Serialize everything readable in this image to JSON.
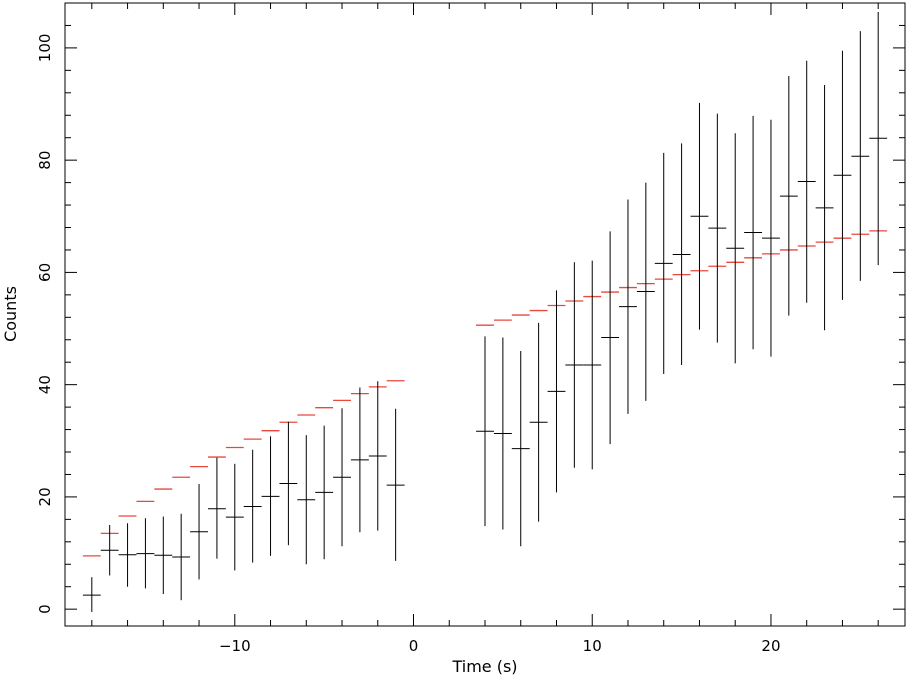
{
  "chart_data": {
    "type": "scatter",
    "xlabel": "Time (s)",
    "ylabel": "Counts",
    "xlim": [
      -19.5,
      27.5
    ],
    "ylim": [
      -3,
      108
    ],
    "x_ticks": [
      -10,
      0,
      10,
      20
    ],
    "y_ticks": [
      0,
      20,
      40,
      60,
      80,
      100
    ],
    "x_tick_labels": [
      "−10",
      "0",
      "10",
      "20"
    ],
    "y_tick_labels": [
      "0",
      "20",
      "40",
      "60",
      "80",
      "100"
    ],
    "grid": false,
    "bin_half_width": 0.5,
    "colors": {
      "data": "#000000",
      "model": "#e8483c"
    },
    "series": [
      {
        "style": "crosshair-errorbar",
        "x": [
          -18,
          -17,
          -16,
          -15,
          -14,
          -13,
          -12,
          -11,
          -10,
          -9,
          -8,
          -7,
          -6,
          -5,
          -4,
          -3,
          -2,
          -1,
          4,
          5,
          6,
          7,
          8,
          9,
          10,
          11,
          12,
          13,
          14,
          15,
          16,
          17,
          18,
          19,
          20,
          21,
          22,
          23,
          24,
          25,
          26
        ],
        "y": [
          2.5,
          10.5,
          9.7,
          9.9,
          9.6,
          9.3,
          13.8,
          17.9,
          16.4,
          18.3,
          20.1,
          22.4,
          19.5,
          20.8,
          23.5,
          26.6,
          27.3,
          22.1,
          31.7,
          31.3,
          28.6,
          33.3,
          38.8,
          43.5,
          43.5,
          48.4,
          53.9,
          56.6,
          61.6,
          63.2,
          70.0,
          67.9,
          64.3,
          67.1,
          66.1,
          73.6,
          76.2,
          71.5,
          77.3,
          80.7,
          83.9
        ],
        "err_low": [
          -0.5,
          6.0,
          4.0,
          3.7,
          2.7,
          1.6,
          5.3,
          9.0,
          6.9,
          8.3,
          9.5,
          11.4,
          8.0,
          8.9,
          11.2,
          13.7,
          14.0,
          8.6,
          14.8,
          14.2,
          11.2,
          15.6,
          20.8,
          25.2,
          24.9,
          29.4,
          34.8,
          37.1,
          41.9,
          43.5,
          49.8,
          47.5,
          43.8,
          46.3,
          45.0,
          52.3,
          54.6,
          49.7,
          55.1,
          58.5,
          61.3
        ],
        "err_high": [
          5.7,
          15.0,
          15.3,
          16.2,
          16.5,
          17.0,
          22.3,
          27.0,
          25.9,
          28.4,
          30.8,
          33.4,
          31.0,
          32.7,
          35.8,
          39.5,
          40.6,
          35.7,
          48.6,
          48.4,
          46.0,
          51.0,
          56.8,
          61.8,
          62.1,
          67.3,
          73.0,
          76.0,
          81.3,
          83.0,
          90.2,
          88.3,
          84.8,
          87.9,
          87.2,
          95.0,
          97.7,
          93.4,
          99.5,
          103.0,
          106.4
        ]
      },
      {
        "style": "step",
        "x": [
          -18,
          -17,
          -16,
          -15,
          -14,
          -13,
          -12,
          -11,
          -10,
          -9,
          -8,
          -7,
          -6,
          -5,
          -4,
          -3,
          -2,
          -1,
          4,
          5,
          6,
          7,
          8,
          9,
          10,
          11,
          12,
          13,
          14,
          15,
          16,
          17,
          18,
          19,
          20,
          21,
          22,
          23,
          24,
          25,
          26
        ],
        "y": [
          9.5,
          13.5,
          16.6,
          19.2,
          21.4,
          23.5,
          25.4,
          27.1,
          28.8,
          30.3,
          31.8,
          33.3,
          34.6,
          35.9,
          37.2,
          38.4,
          39.6,
          40.7,
          50.6,
          51.5,
          52.4,
          53.2,
          54.1,
          54.9,
          55.7,
          56.5,
          57.3,
          58.0,
          58.8,
          59.6,
          60.3,
          61.1,
          61.8,
          62.6,
          63.3,
          64.0,
          64.7,
          65.4,
          66.1,
          66.8,
          67.4
        ]
      }
    ]
  }
}
